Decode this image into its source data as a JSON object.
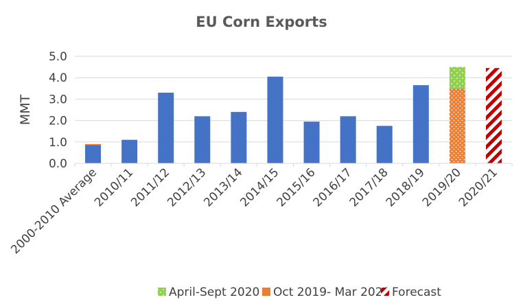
{
  "chart_data": {
    "type": "bar",
    "title": "EU Corn Exports",
    "ylabel": "MMT",
    "xlabel": "",
    "ylim": [
      0,
      5
    ],
    "yticks": [
      "0.0",
      "1.0",
      "2.0",
      "3.0",
      "4.0",
      "5.0"
    ],
    "grid": true,
    "legend_position": "bottom",
    "categories": [
      "2000-2010 Average",
      "2010/11",
      "2011/12",
      "2012/13",
      "2013/14",
      "2014/15",
      "2015/16",
      "2016/17",
      "2017/18",
      "2018/19",
      "2019/20",
      "2020/21"
    ],
    "series": [
      {
        "values": [
          0.85,
          1.1,
          3.3,
          2.2,
          2.4,
          4.05,
          1.95,
          2.2,
          1.75,
          3.65,
          null,
          null
        ],
        "color": "#4472C4"
      },
      {
        "name": "Oct 2019- Mar 2020",
        "values": [
          0.05,
          null,
          null,
          null,
          null,
          null,
          null,
          null,
          null,
          null,
          3.5,
          null
        ],
        "color": "#ED7D31"
      },
      {
        "name": "April-Sept 2020",
        "values": [
          null,
          null,
          null,
          null,
          null,
          null,
          null,
          null,
          null,
          null,
          1.0,
          null
        ],
        "color": "#92D050"
      },
      {
        "name": "Forecast",
        "values": [
          null,
          null,
          null,
          null,
          null,
          null,
          null,
          null,
          null,
          null,
          null,
          4.45
        ],
        "color": "#C00000"
      }
    ],
    "legend": [
      "April-Sept 2020",
      "Oct 2019- Mar 2020",
      "Forecast"
    ]
  }
}
